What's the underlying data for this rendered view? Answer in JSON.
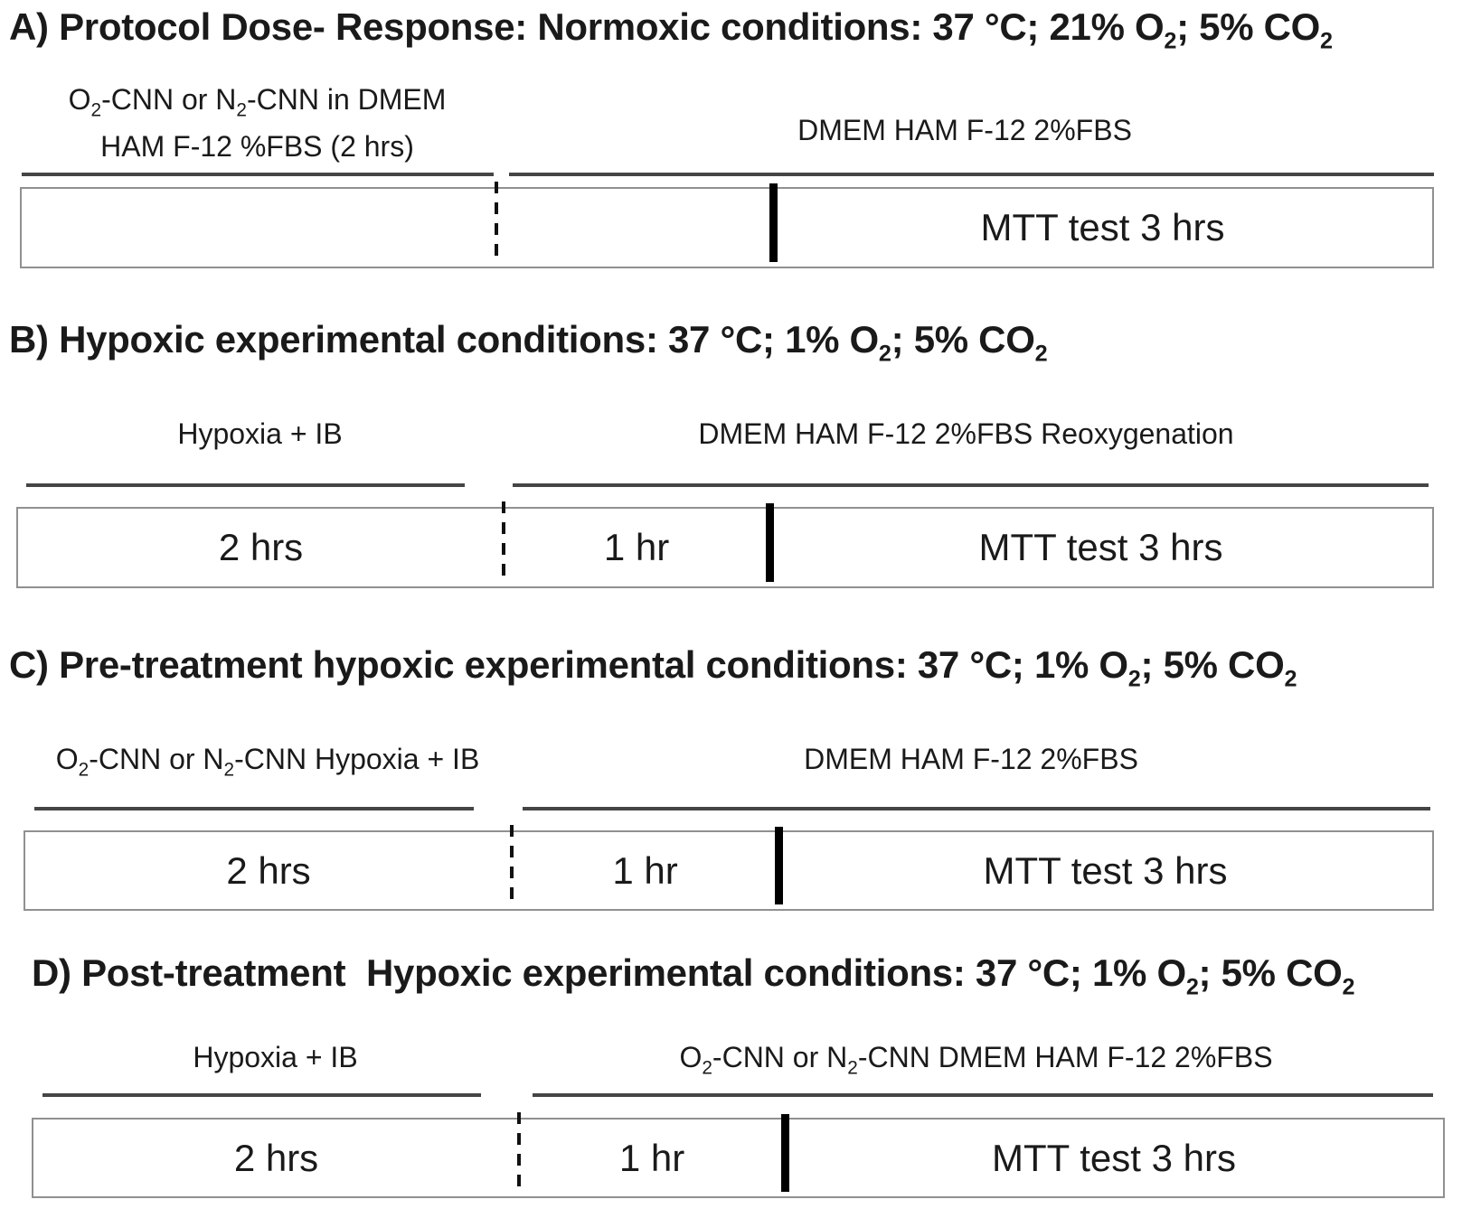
{
  "colors": {
    "text": "#1a1a1a",
    "overline": "#454545",
    "box_border": "#909090",
    "divider": "#000000",
    "background": "#ffffff"
  },
  "panels": [
    {
      "id": "A",
      "title": [
        {
          "t": "A) Protocol Dose- Response: Normoxic conditions: 37 °C; 21% O"
        },
        {
          "t": "2",
          "sub": true
        },
        {
          "t": "; 5% CO"
        },
        {
          "t": "2",
          "sub": true
        }
      ],
      "left_label_lines": [
        [
          {
            "t": "O"
          },
          {
            "t": "2",
            "sub": true
          },
          {
            "t": "-CNN or N"
          },
          {
            "t": "2",
            "sub": true
          },
          {
            "t": "-CNN in DMEM"
          }
        ],
        [
          {
            "t": "HAM F-12 %FBS (2 hrs)"
          }
        ]
      ],
      "right_label_lines": [
        [
          {
            "t": "DMEM HAM F-12 2%FBS"
          }
        ]
      ],
      "box_segments": [
        "",
        "",
        "MTT test 3 hrs"
      ]
    },
    {
      "id": "B",
      "title": [
        {
          "t": "B) Hypoxic experimental conditions: 37 °C; 1% O"
        },
        {
          "t": "2",
          "sub": true
        },
        {
          "t": "; 5% CO"
        },
        {
          "t": "2",
          "sub": true
        }
      ],
      "left_label_lines": [
        [
          {
            "t": "Hypoxia + IB"
          }
        ]
      ],
      "right_label_lines": [
        [
          {
            "t": "DMEM HAM F-12 2%FBS Reoxygenation"
          }
        ]
      ],
      "box_segments": [
        "2 hrs",
        "1 hr",
        "MTT test 3 hrs"
      ]
    },
    {
      "id": "C",
      "title": [
        {
          "t": "C) Pre-treatment hypoxic experimental conditions: 37 °C; 1% O"
        },
        {
          "t": "2",
          "sub": true
        },
        {
          "t": "; 5% CO"
        },
        {
          "t": "2",
          "sub": true
        }
      ],
      "left_label_lines": [
        [
          {
            "t": "O"
          },
          {
            "t": "2",
            "sub": true
          },
          {
            "t": "-CNN or N"
          },
          {
            "t": "2",
            "sub": true
          },
          {
            "t": "-CNN Hypoxia + IB"
          }
        ]
      ],
      "right_label_lines": [
        [
          {
            "t": "DMEM HAM F-12 2%FBS"
          }
        ]
      ],
      "box_segments": [
        "2 hrs",
        "1 hr",
        "MTT test 3 hrs"
      ]
    },
    {
      "id": "D",
      "title": [
        {
          "t": "D) Post-treatment  Hypoxic experimental conditions: 37 °C; 1% O"
        },
        {
          "t": "2",
          "sub": true
        },
        {
          "t": "; 5% CO"
        },
        {
          "t": "2",
          "sub": true
        }
      ],
      "left_label_lines": [
        [
          {
            "t": "Hypoxia + IB"
          }
        ]
      ],
      "right_label_lines": [
        [
          {
            "t": "O"
          },
          {
            "t": "2",
            "sub": true
          },
          {
            "t": "-CNN or N"
          },
          {
            "t": "2",
            "sub": true
          },
          {
            "t": "-CNN DMEM HAM F-12 2%FBS"
          }
        ]
      ],
      "box_segments": [
        "2 hrs",
        "1 hr",
        "MTT test 3 hrs"
      ]
    }
  ]
}
